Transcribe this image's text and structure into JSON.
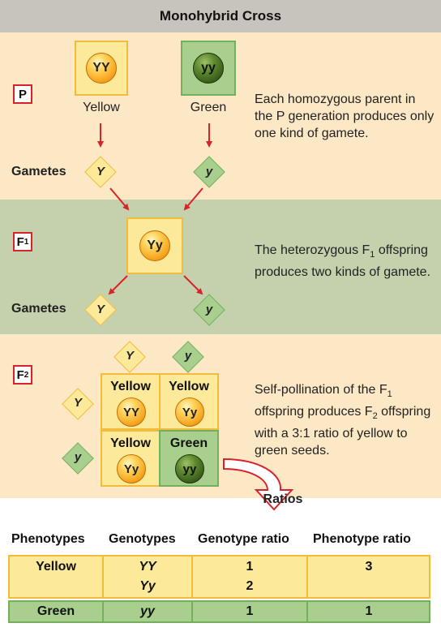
{
  "title": "Monohybrid Cross",
  "p": {
    "label": "P",
    "parents": [
      {
        "genotype": "YY",
        "phenotype": "Yellow"
      },
      {
        "genotype": "yy",
        "phenotype": "Green"
      }
    ],
    "gametes_label": "Gametes",
    "gametes": [
      "Y",
      "y"
    ],
    "description": "Each homozygous parent in the P generation produces only one kind of gamete."
  },
  "f1": {
    "label": "F",
    "label_sub": "1",
    "genotype": "Yy",
    "gametes_label": "Gametes",
    "gametes": [
      "Y",
      "y"
    ],
    "description_pre": "The heterozygous F",
    "description_sub": "1",
    "description_post": " offspring produces two kinds of gamete."
  },
  "f2": {
    "label": "F",
    "label_sub": "2",
    "top_gametes": [
      "Y",
      "y"
    ],
    "side_gametes": [
      "Y",
      "y"
    ],
    "cells": [
      {
        "phenotype": "Yellow",
        "genotype": "YY"
      },
      {
        "phenotype": "Yellow",
        "genotype": "Yy"
      },
      {
        "phenotype": "Yellow",
        "genotype": "Yy"
      },
      {
        "phenotype": "Green",
        "genotype": "yy"
      }
    ],
    "description_1": "Self-pollination of the F",
    "description_1_sub": "1",
    "description_2": " offspring produces F",
    "description_2_sub": "2",
    "description_3": " offspring with a 3:1 ratio of yellow to green seeds."
  },
  "ratios": {
    "label": "Ratios",
    "headers": [
      "Phenotypes",
      "Genotypes",
      "Genotype ratio",
      "Phenotype ratio"
    ],
    "rows": [
      {
        "phenotype": "Yellow",
        "genotypes": [
          "YY",
          "Yy"
        ],
        "genotype_ratios": [
          "1",
          "2"
        ],
        "phenotype_ratio": "3"
      },
      {
        "phenotype": "Green",
        "genotypes": [
          "yy"
        ],
        "genotype_ratios": [
          "1"
        ],
        "phenotype_ratio": "1"
      }
    ]
  },
  "colors": {
    "yellow_fill": "#fcea9a",
    "yellow_border": "#f1bc3c",
    "green_fill": "#a9cf8e",
    "green_border": "#74b05c",
    "arrow": "#d9232a"
  }
}
